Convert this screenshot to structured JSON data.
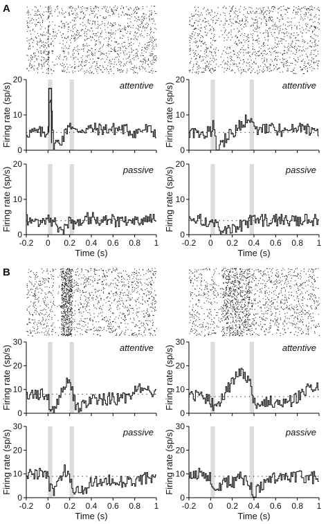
{
  "figure": {
    "colors": {
      "trace": "#1a1a1a",
      "shade": "#dcdcdc",
      "axis": "#000000",
      "raster": "#222222"
    },
    "sections": [
      {
        "letter": "A",
        "raster_density": 0.0
      },
      {
        "letter": "B"
      }
    ]
  },
  "chart_data": [
    {
      "id": "A-left-attentive",
      "type": "line",
      "section": "A",
      "column": "left",
      "condition": "attentive",
      "xlim": [
        -0.2,
        1
      ],
      "ylim": [
        0,
        20
      ],
      "yticks": [
        0,
        10,
        20
      ],
      "xticks": [
        -0.2,
        0,
        0.2,
        0.4,
        0.6,
        0.8,
        1
      ],
      "xticklabels": [
        "-0.2",
        "0",
        "0.2",
        "0.4",
        "0.6",
        "0.8",
        "1"
      ],
      "xlabel": "Time (s)",
      "ylabel": "Firing rate (sp/s)",
      "baseline": 5,
      "stim_windows": [
        [
          0,
          0.04
        ],
        [
          0.2,
          0.24
        ]
      ],
      "x": [
        -0.2,
        -0.1,
        0,
        0.02,
        0.05,
        0.1,
        0.15,
        0.2,
        0.25,
        0.3,
        0.4,
        0.5,
        0.6,
        0.7,
        0.8,
        0.9,
        1
      ],
      "y": [
        5,
        5,
        5,
        17.5,
        2,
        2,
        4,
        8,
        5,
        6,
        6,
        6,
        6,
        6,
        5,
        6,
        5
      ]
    },
    {
      "id": "A-right-attentive",
      "type": "line",
      "section": "A",
      "column": "right",
      "condition": "attentive",
      "xlim": [
        -0.2,
        1
      ],
      "ylim": [
        0,
        20
      ],
      "yticks": [
        0,
        10,
        20
      ],
      "xticks": [
        -0.2,
        0,
        0.2,
        0.4,
        0.6,
        0.8,
        1
      ],
      "xticklabels": [
        "-0.2",
        "0",
        "0.2",
        "0.4",
        "0.6",
        "0.8",
        "1"
      ],
      "xlabel": "Time (s)",
      "ylabel": "Firing rate (sp/s)",
      "baseline": 5,
      "stim_windows": [
        [
          0,
          0.04
        ],
        [
          0.36,
          0.4
        ]
      ],
      "x": [
        -0.2,
        -0.1,
        0,
        0.03,
        0.05,
        0.1,
        0.2,
        0.3,
        0.36,
        0.4,
        0.5,
        0.6,
        0.7,
        0.8,
        0.9,
        1
      ],
      "y": [
        5,
        5,
        5,
        7,
        1,
        2,
        5,
        8,
        9,
        6,
        6,
        6,
        5,
        6,
        6,
        5
      ]
    },
    {
      "id": "A-left-passive",
      "type": "line",
      "section": "A",
      "column": "left",
      "condition": "passive",
      "xlim": [
        -0.2,
        1
      ],
      "ylim": [
        0,
        20
      ],
      "yticks": [
        0,
        10,
        20
      ],
      "xticks": [
        -0.2,
        0,
        0.2,
        0.4,
        0.6,
        0.8,
        1
      ],
      "xticklabels": [
        "-0.2",
        "0",
        "0.2",
        "0.4",
        "0.6",
        "0.8",
        "1"
      ],
      "xlabel": "Time (s)",
      "ylabel": "Firing rate (sp/s)",
      "baseline": 4,
      "stim_windows": [
        [
          0,
          0.04
        ],
        [
          0.2,
          0.24
        ]
      ],
      "x": [
        -0.2,
        -0.1,
        0,
        0.05,
        0.1,
        0.15,
        0.2,
        0.25,
        0.3,
        0.4,
        0.5,
        0.6,
        0.7,
        0.8,
        0.9,
        1
      ],
      "y": [
        4,
        4,
        4,
        4,
        2,
        1,
        4,
        3,
        4,
        5,
        4,
        4,
        4,
        4,
        4,
        4
      ]
    },
    {
      "id": "A-right-passive",
      "type": "line",
      "section": "A",
      "column": "right",
      "condition": "passive",
      "xlim": [
        -0.2,
        1
      ],
      "ylim": [
        0,
        20
      ],
      "yticks": [
        0,
        10,
        20
      ],
      "xticks": [
        -0.2,
        0,
        0.2,
        0.4,
        0.6,
        0.8,
        1
      ],
      "xticklabels": [
        "-0.2",
        "0",
        "0.2",
        "0.4",
        "0.6",
        "0.8",
        "1"
      ],
      "xlabel": "Time (s)",
      "ylabel": "Firing rate (sp/s)",
      "baseline": 4,
      "stim_windows": [
        [
          0,
          0.04
        ],
        [
          0.36,
          0.4
        ]
      ],
      "x": [
        -0.2,
        -0.1,
        0,
        0.05,
        0.1,
        0.2,
        0.3,
        0.36,
        0.4,
        0.5,
        0.6,
        0.7,
        0.8,
        0.9,
        1
      ],
      "y": [
        4,
        4,
        4,
        3,
        1,
        1,
        3,
        4,
        4,
        4,
        4,
        4,
        4,
        4,
        4
      ]
    },
    {
      "id": "B-left-attentive",
      "type": "line",
      "section": "B",
      "column": "left",
      "condition": "attentive",
      "xlim": [
        -0.2,
        1
      ],
      "ylim": [
        0,
        30
      ],
      "yticks": [
        0,
        10,
        20,
        30
      ],
      "xticks": [
        -0.2,
        0,
        0.2,
        0.4,
        0.6,
        0.8,
        1
      ],
      "xticklabels": [
        "-0.2",
        "0",
        "0.2",
        "0.4",
        "0.6",
        "0.8",
        "1"
      ],
      "xlabel": "Time (s)",
      "ylabel": "Firing rate (sp/s)",
      "baseline": 8,
      "stim_windows": [
        [
          0,
          0.04
        ],
        [
          0.2,
          0.24
        ]
      ],
      "x": [
        -0.2,
        -0.1,
        0,
        0.02,
        0.05,
        0.1,
        0.15,
        0.2,
        0.25,
        0.3,
        0.4,
        0.5,
        0.6,
        0.7,
        0.8,
        0.9,
        1
      ],
      "y": [
        8,
        8,
        7,
        2,
        1,
        6,
        12,
        14,
        4,
        2,
        6,
        6,
        6,
        6,
        9,
        11,
        8
      ]
    },
    {
      "id": "B-right-attentive",
      "type": "line",
      "section": "B",
      "column": "right",
      "condition": "attentive",
      "xlim": [
        -0.2,
        1
      ],
      "ylim": [
        0,
        30
      ],
      "yticks": [
        0,
        10,
        20,
        30
      ],
      "xticks": [
        -0.2,
        0,
        0.2,
        0.4,
        0.6,
        0.8,
        1
      ],
      "xticklabels": [
        "-0.2",
        "0",
        "0.2",
        "0.4",
        "0.6",
        "0.8",
        "1"
      ],
      "xlabel": "Time (s)",
      "ylabel": "Firing rate (sp/s)",
      "baseline": 7,
      "stim_windows": [
        [
          0,
          0.04
        ],
        [
          0.36,
          0.4
        ]
      ],
      "x": [
        -0.2,
        -0.1,
        0,
        0.03,
        0.05,
        0.1,
        0.15,
        0.2,
        0.25,
        0.3,
        0.36,
        0.4,
        0.5,
        0.6,
        0.7,
        0.8,
        0.9,
        1
      ],
      "y": [
        8,
        7,
        6,
        2,
        1,
        6,
        10,
        13,
        18,
        16,
        14,
        4,
        4,
        5,
        5,
        6,
        11,
        10
      ]
    },
    {
      "id": "B-left-passive",
      "type": "line",
      "section": "B",
      "column": "left",
      "condition": "passive",
      "xlim": [
        -0.2,
        1
      ],
      "ylim": [
        0,
        30
      ],
      "yticks": [
        0,
        10,
        20,
        30
      ],
      "xticks": [
        -0.2,
        0,
        0.2,
        0.4,
        0.6,
        0.8,
        1
      ],
      "xticklabels": [
        "-0.2",
        "0",
        "0.2",
        "0.4",
        "0.6",
        "0.8",
        "1"
      ],
      "xlabel": "Time (s)",
      "ylabel": "Firing rate (sp/s)",
      "baseline": 9,
      "stim_windows": [
        [
          0,
          0.04
        ],
        [
          0.2,
          0.24
        ]
      ],
      "x": [
        -0.2,
        -0.1,
        0,
        0.02,
        0.05,
        0.1,
        0.15,
        0.2,
        0.25,
        0.3,
        0.4,
        0.5,
        0.6,
        0.7,
        0.8,
        0.9,
        1
      ],
      "y": [
        10,
        10,
        9,
        4,
        2,
        8,
        12,
        8,
        3,
        2,
        6,
        7,
        7,
        7,
        7,
        8,
        8
      ]
    },
    {
      "id": "B-right-passive",
      "type": "line",
      "section": "B",
      "column": "right",
      "condition": "passive",
      "xlim": [
        -0.2,
        1
      ],
      "ylim": [
        0,
        30
      ],
      "yticks": [
        0,
        10,
        20,
        30
      ],
      "xticks": [
        -0.2,
        0,
        0.2,
        0.4,
        0.6,
        0.8,
        1
      ],
      "xticklabels": [
        "-0.2",
        "0",
        "0.2",
        "0.4",
        "0.6",
        "0.8",
        "1"
      ],
      "xlabel": "Time (s)",
      "ylabel": "Firing rate (sp/s)",
      "baseline": 9,
      "stim_windows": [
        [
          0,
          0.04
        ],
        [
          0.36,
          0.4
        ]
      ],
      "x": [
        -0.2,
        -0.1,
        0,
        0.03,
        0.05,
        0.1,
        0.15,
        0.2,
        0.25,
        0.3,
        0.36,
        0.4,
        0.5,
        0.6,
        0.7,
        0.8,
        0.9,
        1
      ],
      "y": [
        10,
        10,
        9,
        5,
        2,
        6,
        7,
        6,
        9,
        8,
        6,
        1,
        7,
        8,
        8,
        9,
        8,
        9
      ]
    }
  ]
}
